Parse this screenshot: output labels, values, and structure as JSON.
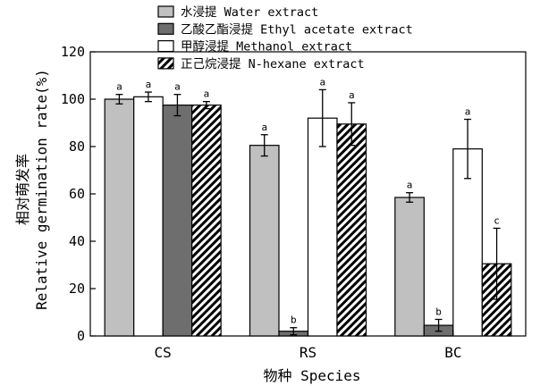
{
  "chart_data": {
    "type": "bar",
    "categories": [
      "CS",
      "RS",
      "BC"
    ],
    "xlabel": "物种 Species",
    "ylabel_cn": "相对萌发率",
    "ylabel_en": "Relative germination rate(%)",
    "ylim": [
      0,
      120
    ],
    "yticks": [
      0,
      20,
      40,
      60,
      80,
      100,
      120
    ],
    "grid": false,
    "legend_position": "top",
    "series": [
      {
        "name": "水浸提 Water extract",
        "pattern": "solid",
        "color": "#c0c0c0",
        "values": [
          100,
          80.5,
          58.5
        ],
        "errors": [
          2,
          4.5,
          2
        ],
        "labels": [
          "a",
          "a",
          "a"
        ]
      },
      {
        "name": "乙酸乙酯浸提 Ethyl acetate extract",
        "pattern": "solid",
        "color": "#6e6e6e",
        "values": [
          97.5,
          0,
          4.5
        ],
        "errors": [
          4.5,
          0,
          2.5
        ],
        "labels": [
          "a",
          "",
          "b"
        ]
      },
      {
        "name": "甲醇浸提 Methanol extract",
        "pattern": "solid",
        "color": "#ffffff",
        "values": [
          101,
          92,
          79
        ],
        "errors": [
          2,
          12,
          12.5
        ],
        "labels": [
          "a",
          "a",
          "a"
        ]
      },
      {
        "name": "正己烷浸提 N-hexane extract",
        "pattern": "hatch",
        "color": "#000000",
        "values": [
          97.5,
          89.5,
          30.5
        ],
        "errors": [
          1.5,
          9,
          15
        ],
        "labels": [
          "a",
          "a",
          "c"
        ]
      },
      {
        "name": "",
        "pattern": "solid",
        "color": "#6e6e6e",
        "values": [
          null,
          2,
          null
        ],
        "errors": [
          null,
          1.5,
          null
        ],
        "labels": [
          "",
          "b",
          ""
        ]
      }
    ],
    "bar_order": [
      [
        0,
        2,
        1,
        3
      ],
      [
        0,
        4,
        2,
        3
      ],
      [
        0,
        1,
        2,
        3
      ]
    ]
  }
}
